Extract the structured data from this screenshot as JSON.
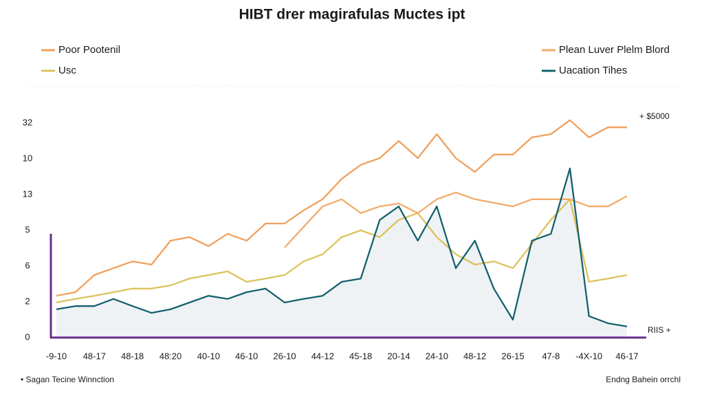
{
  "chart_data": {
    "type": "line",
    "title": "HIBT drer magirafulas Muctes ipt",
    "annotations": [
      "+ $5000",
      "RIIS +"
    ],
    "footer_left": "• Sagan Tecine Winnction",
    "footer_right": "Endng Bahein orrchl",
    "categories": [
      "-9-10",
      null,
      "48-17",
      null,
      "48-18",
      null,
      "48:20",
      null,
      "40-10",
      null,
      "46-10",
      null,
      "26-10",
      null,
      "44-12",
      null,
      "45-18",
      null,
      "20-14",
      null,
      "24-10",
      null,
      "48-12",
      null,
      "26-15",
      null,
      "47-8",
      null,
      "-4X-10",
      null,
      "46-17"
    ],
    "ylim": [
      0,
      6.3
    ],
    "yticks": [
      {
        "value": 0,
        "label": "0"
      },
      {
        "value": 1,
        "label": "2"
      },
      {
        "value": 2,
        "label": "6"
      },
      {
        "value": 3,
        "label": "5"
      },
      {
        "value": 4,
        "label": "13"
      },
      {
        "value": 5,
        "label": "10"
      },
      {
        "value": 6,
        "label": "32"
      }
    ],
    "series": [
      {
        "name": "Poor Pootenil",
        "color": "#f0a05c",
        "legend": "top-left",
        "values": [
          1.17,
          1.27,
          1.75,
          1.94,
          2.13,
          2.04,
          2.71,
          2.81,
          2.56,
          2.9,
          2.71,
          3.19,
          3.19,
          3.56,
          3.87,
          4.44,
          4.83,
          5.02,
          5.5,
          5.02,
          5.69,
          5.02,
          4.63,
          5.12,
          5.12,
          5.6,
          5.69,
          6.08,
          5.6,
          5.88,
          5.88
        ]
      },
      {
        "name": "Usc",
        "color": "#dcc25a",
        "legend": "top-left",
        "values": [
          0.98,
          1.08,
          1.17,
          1.27,
          1.37,
          1.37,
          1.46,
          1.65,
          1.75,
          1.85,
          1.56,
          1.65,
          1.75,
          2.13,
          2.33,
          2.81,
          3.0,
          2.81,
          3.29,
          3.48,
          2.81,
          2.33,
          2.04,
          2.13,
          1.94,
          2.62,
          3.29,
          3.87,
          1.56,
          1.65,
          1.75
        ]
      },
      {
        "name": "Plean Luver Plelm Blord",
        "color": "#f2ab6a",
        "legend": "top-right",
        "values": [
          null,
          null,
          null,
          null,
          null,
          null,
          null,
          null,
          null,
          null,
          null,
          null,
          2.52,
          3.1,
          3.67,
          3.87,
          3.48,
          3.67,
          3.75,
          3.48,
          3.87,
          4.06,
          3.87,
          3.77,
          3.67,
          3.87,
          3.87,
          3.87,
          3.67,
          3.67,
          3.96
        ]
      },
      {
        "name": "Uacation Tihes",
        "color": "#14606e",
        "legend": "top-right",
        "area": "#eef2f4",
        "values": [
          0.79,
          0.88,
          0.88,
          1.08,
          0.88,
          0.69,
          0.79,
          0.98,
          1.17,
          1.08,
          1.27,
          1.37,
          0.98,
          1.08,
          1.17,
          1.56,
          1.65,
          3.29,
          3.67,
          2.71,
          3.67,
          1.94,
          2.71,
          1.37,
          0.5,
          2.71,
          2.9,
          4.73,
          0.6,
          0.4,
          0.31
        ]
      }
    ]
  }
}
